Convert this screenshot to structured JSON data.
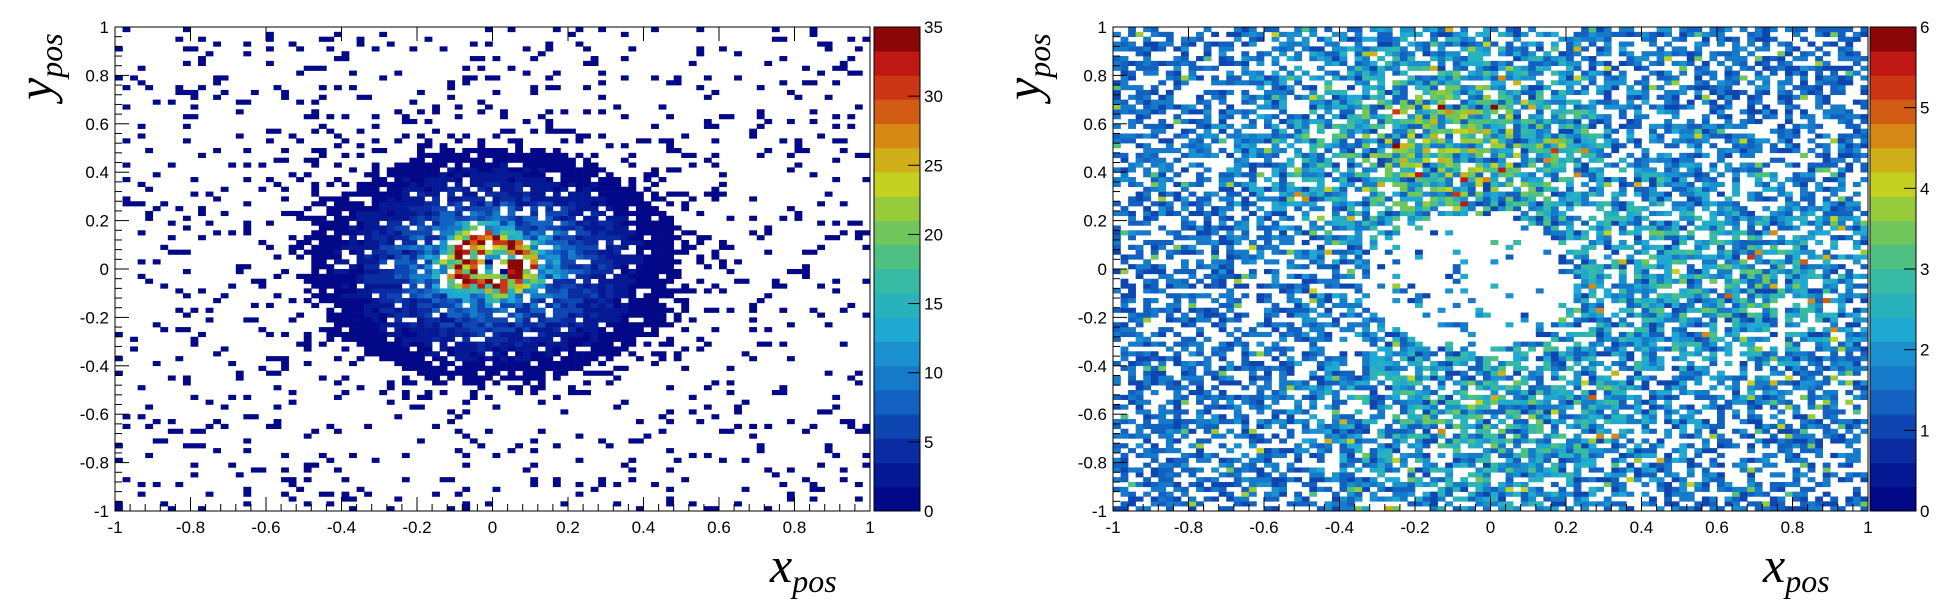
{
  "chart_data": [
    {
      "type": "heatmap",
      "title": "",
      "xlabel": "x",
      "xlabel_sub": "pos",
      "ylabel": "y",
      "ylabel_sub": "pos",
      "xlim": [
        -1,
        1
      ],
      "ylim": [
        -1,
        1
      ],
      "xticks": [
        -1,
        -0.8,
        -0.6,
        -0.4,
        -0.2,
        0,
        0.2,
        0.4,
        0.6,
        0.8,
        1
      ],
      "yticks": [
        -1,
        -0.8,
        -0.6,
        -0.4,
        -0.2,
        0,
        0.2,
        0.4,
        0.6,
        0.8,
        1
      ],
      "bins": {
        "x": 100,
        "y": 100
      },
      "colorbar": {
        "min": 0,
        "max": 35,
        "ticks": [
          0,
          5,
          10,
          15,
          20,
          25,
          30,
          35
        ],
        "levels": 20,
        "palette": "kBird"
      },
      "pattern": {
        "description_for_render": "ring",
        "center": [
          0,
          0.02
        ],
        "ring_radius": 0.08,
        "ring_peak": 35,
        "hole_radius": 0.05,
        "halo_sigma": 0.2,
        "halo_scale": 12,
        "background_fill": 0.1,
        "peak_location": [
          -0.05,
          0.14
        ]
      },
      "grid": false,
      "legend": "none"
    },
    {
      "type": "heatmap",
      "title": "",
      "xlabel": "x",
      "xlabel_sub": "pos",
      "ylabel": "y",
      "ylabel_sub": "pos",
      "xlim": [
        -1,
        1
      ],
      "ylim": [
        -1,
        1
      ],
      "xticks": [
        -1,
        -0.8,
        -0.6,
        -0.4,
        -0.2,
        0,
        0.2,
        0.4,
        0.6,
        0.8,
        1
      ],
      "yticks": [
        -1,
        -0.8,
        -0.6,
        -0.4,
        -0.2,
        0,
        0.2,
        0.4,
        0.6,
        0.8,
        1
      ],
      "bins": {
        "x": 100,
        "y": 100
      },
      "colorbar": {
        "min": 0,
        "max": 6,
        "ticks": [
          0,
          1,
          2,
          3,
          4,
          5,
          6
        ],
        "levels": 20,
        "palette": "kBird"
      },
      "pattern": {
        "description_for_render": "diffuse",
        "hot_regions": [
          {
            "center": [
              -0.1,
              0.5
            ],
            "sigma": 0.3,
            "scale": 3
          },
          {
            "center": [
              0.65,
              -0.05
            ],
            "sigma": 0.25,
            "scale": 2
          },
          {
            "center": [
              0,
              -0.6
            ],
            "sigma": 0.3,
            "scale": 2
          }
        ],
        "empty_region": {
          "center": [
            -0.05,
            -0.05
          ],
          "radius": 0.28
        },
        "background_fill": 0.55,
        "max_value": 6
      },
      "grid": false,
      "legend": "none"
    }
  ]
}
